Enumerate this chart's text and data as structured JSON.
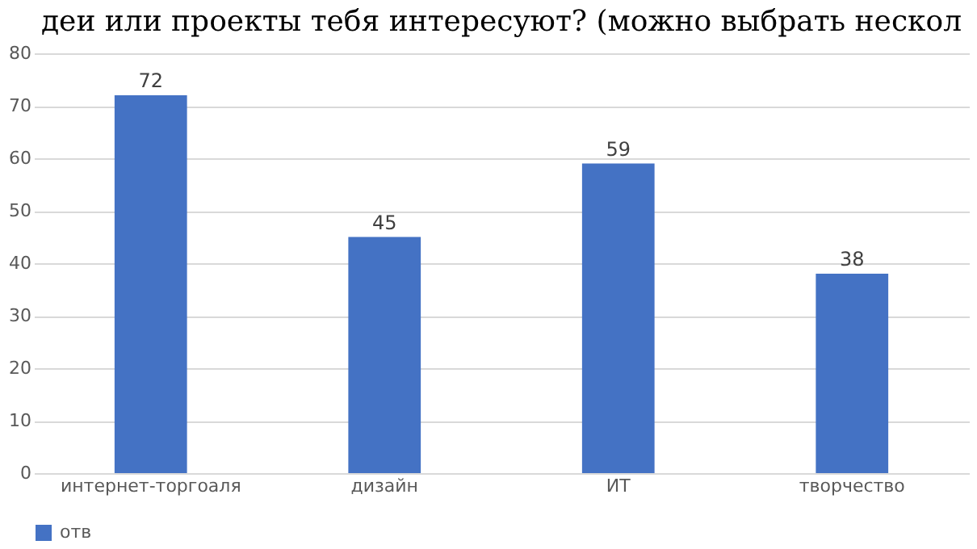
{
  "chart_data": {
    "type": "bar",
    "title": "деи или проекты тебя интересуют? (можно выбрать нескол",
    "categories": [
      "интернет-торгоаля",
      "дизайн",
      "ИТ",
      "творчество"
    ],
    "series": [
      {
        "name": "отв",
        "color": "#4472c4",
        "values": [
          72,
          45,
          59,
          38
        ]
      }
    ],
    "ylim": [
      0,
      80
    ],
    "yticks": [
      0,
      10,
      20,
      30,
      40,
      50,
      60,
      70,
      80
    ],
    "grid": "y",
    "legend": "bottom",
    "data_labels": true
  }
}
